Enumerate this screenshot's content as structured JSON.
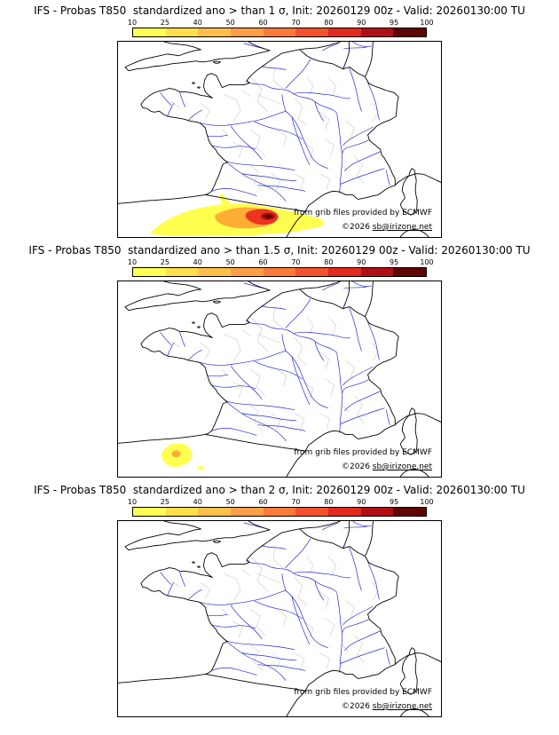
{
  "panels": [
    {
      "title": "IFS - Probas T850  standardized ano > than 1 σ, Init: 20260129 00z - Valid: 20260130:00 TU"
    },
    {
      "title": "IFS - Probas T850  standardized ano > than 1.5 σ, Init: 20260129 00z - Valid: 20260130:00 TU"
    },
    {
      "title": "IFS - Probas T850  standardized ano > than 2 σ, Init: 20260129 00z - Valid: 20260130:00 TU"
    }
  ],
  "colorbar": {
    "ticks": [
      "10",
      "25",
      "40",
      "50",
      "60",
      "70",
      "80",
      "90",
      "95",
      "100"
    ],
    "colors": [
      "#ffff54",
      "#ffe04a",
      "#ffc04a",
      "#ff9e46",
      "#fb7a3a",
      "#f4512c",
      "#e02a1e",
      "#b01015",
      "#600404"
    ]
  },
  "attribution": {
    "provider": "from grib files provided by ECMWF",
    "copyright_prefix": "©2026 ",
    "copyright_email": "sb@irizone.net"
  },
  "map": {
    "region": "France",
    "coast_color": "#000000",
    "river_color": "#2a2ad0",
    "department_color": "#c8c8c8"
  }
}
